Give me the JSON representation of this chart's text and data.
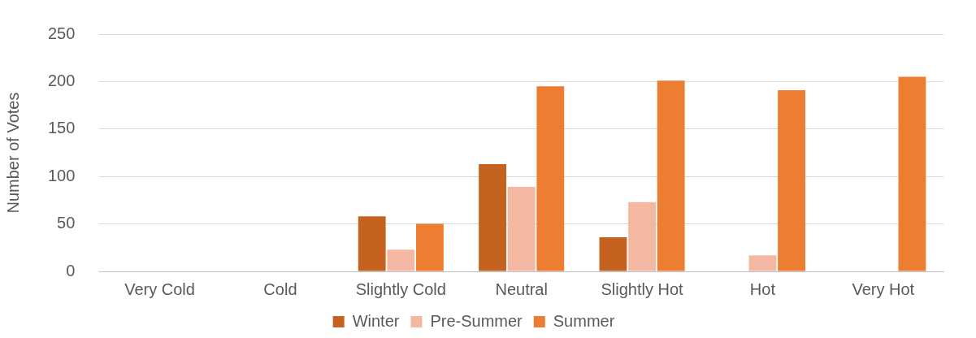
{
  "chart_data": {
    "type": "bar",
    "ylabel": "Number of Votes",
    "categories": [
      "Very Cold",
      "Cold",
      "Slightly Cold",
      "Neutral",
      "Slightly Hot",
      "Hot",
      "Very Hot"
    ],
    "series": [
      {
        "name": "Winter",
        "color": "#c5621f",
        "values": [
          0,
          0,
          58,
          113,
          36,
          0,
          0
        ]
      },
      {
        "name": "Pre-Summer",
        "color": "#f4b8a2",
        "values": [
          0,
          0,
          23,
          89,
          73,
          17,
          0
        ]
      },
      {
        "name": "Summer",
        "color": "#ed7d31",
        "values": [
          0,
          0,
          50,
          195,
          201,
          191,
          205
        ]
      }
    ],
    "ylim": [
      0,
      250
    ],
    "yticks": [
      0,
      50,
      100,
      150,
      200,
      250
    ],
    "grid": "y",
    "legend": "bottom"
  }
}
